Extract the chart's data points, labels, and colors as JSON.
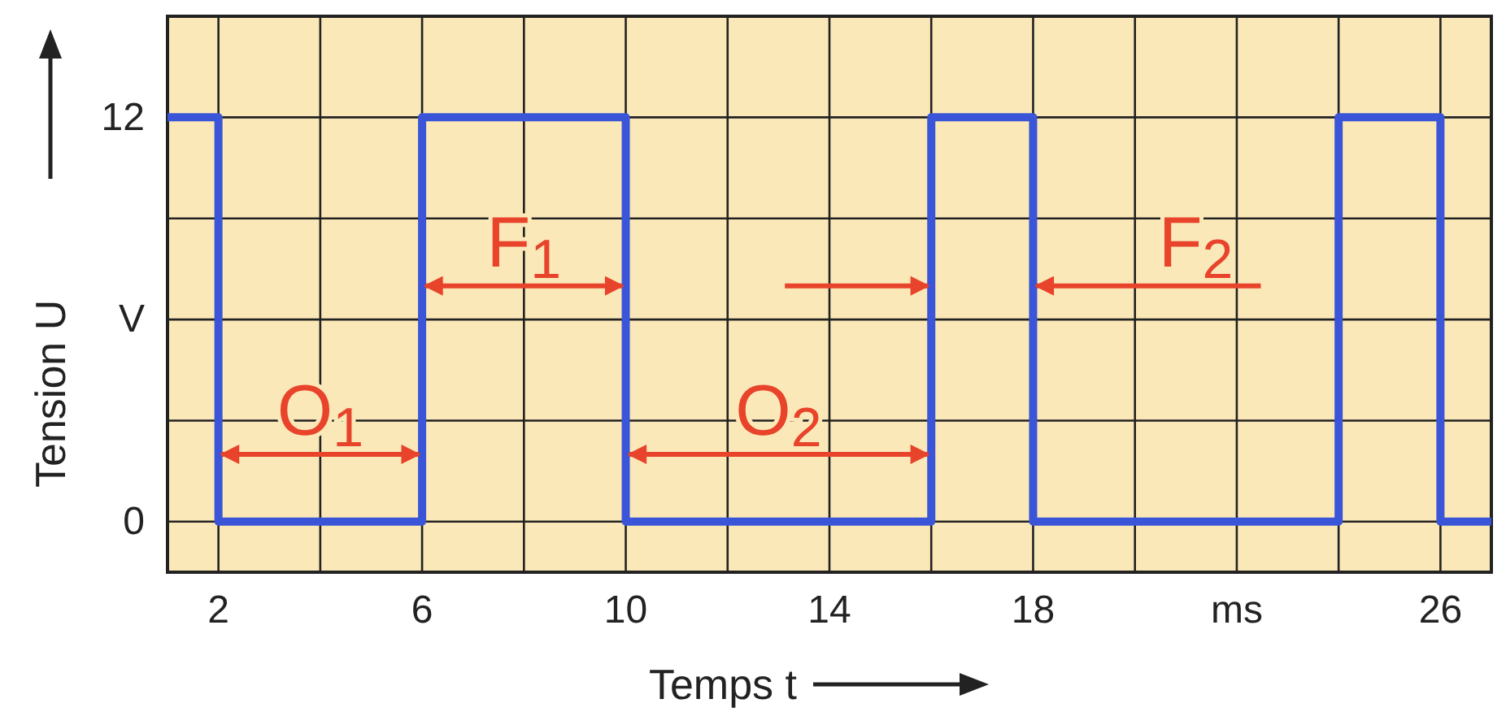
{
  "chart_data": {
    "type": "step",
    "xlabel": "Temps t",
    "ylabel": "Tension  U",
    "x": [
      1,
      2,
      6,
      10,
      16,
      18,
      24,
      26,
      27
    ],
    "series": [
      {
        "color": "#3a55d8",
        "values": [
          12,
          0,
          12,
          0,
          12,
          0,
          12,
          0,
          0
        ]
      }
    ],
    "xlim": [
      1,
      27
    ],
    "ylim": [
      -1.5,
      15
    ],
    "xticks": [
      2,
      {
        "value": 4,
        "label": null
      },
      6,
      {
        "value": 8,
        "label": null
      },
      10,
      {
        "value": 12,
        "label": null
      },
      14,
      {
        "value": 16,
        "label": null
      },
      18,
      {
        "value": 20,
        "label": null
      },
      {
        "value": 22,
        "label": "ms"
      },
      {
        "value": 24,
        "label": null
      },
      26
    ],
    "yticks": [
      0,
      {
        "value": 3,
        "label": null
      },
      {
        "value": 6,
        "label": "V"
      },
      {
        "value": 9,
        "label": null
      },
      12
    ],
    "grid": true,
    "line_style": "solid",
    "marker": "none",
    "annotations": [
      {
        "text": "O$_{1}$",
        "x": 6,
        "y": 2
      },
      {
        "text": "F$_{1}$",
        "x": 10,
        "y": 7
      },
      {
        "text": "O$_{2}$",
        "x": 16,
        "y": 2
      },
      {
        "text": "F$_{2}$",
        "x": 18,
        "y": 7
      }
    ]
  }
}
